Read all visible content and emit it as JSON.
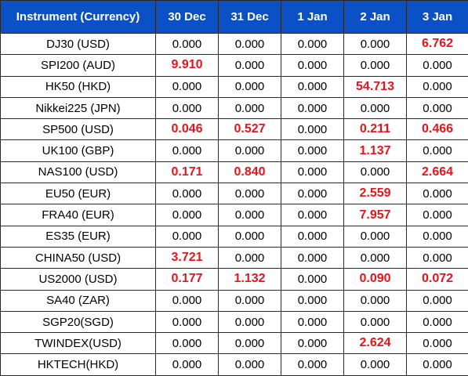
{
  "header": {
    "instrument": "Instrument (Currency)",
    "dates": [
      "30 Dec",
      "31 Dec",
      "1 Jan",
      "2 Jan",
      "3 Jan"
    ]
  },
  "colors": {
    "header_bg": "#0b51c5",
    "header_text": "#ffffff",
    "highlight": "#e8141b",
    "border": "#2a2a2a"
  },
  "rows": [
    {
      "instrument": "DJ30 (USD)",
      "values": [
        "0.000",
        "0.000",
        "0.000",
        "0.000",
        "6.762"
      ],
      "highlight": [
        false,
        false,
        false,
        false,
        true
      ]
    },
    {
      "instrument": "SPI200 (AUD)",
      "values": [
        "9.910",
        "0.000",
        "0.000",
        "0.000",
        "0.000"
      ],
      "highlight": [
        true,
        false,
        false,
        false,
        false
      ]
    },
    {
      "instrument": "HK50 (HKD)",
      "values": [
        "0.000",
        "0.000",
        "0.000",
        "54.713",
        "0.000"
      ],
      "highlight": [
        false,
        false,
        false,
        true,
        false
      ]
    },
    {
      "instrument": "Nikkei225 (JPN)",
      "values": [
        "0.000",
        "0.000",
        "0.000",
        "0.000",
        "0.000"
      ],
      "highlight": [
        false,
        false,
        false,
        false,
        false
      ]
    },
    {
      "instrument": "SP500 (USD)",
      "values": [
        "0.046",
        "0.527",
        "0.000",
        "0.211",
        "0.466"
      ],
      "highlight": [
        true,
        true,
        false,
        true,
        true
      ]
    },
    {
      "instrument": "UK100 (GBP)",
      "values": [
        "0.000",
        "0.000",
        "0.000",
        "1.137",
        "0.000"
      ],
      "highlight": [
        false,
        false,
        false,
        true,
        false
      ]
    },
    {
      "instrument": "NAS100 (USD)",
      "values": [
        "0.171",
        "0.840",
        "0.000",
        "0.000",
        "2.664"
      ],
      "highlight": [
        true,
        true,
        false,
        false,
        true
      ]
    },
    {
      "instrument": "EU50 (EUR)",
      "values": [
        "0.000",
        "0.000",
        "0.000",
        "2.559",
        "0.000"
      ],
      "highlight": [
        false,
        false,
        false,
        true,
        false
      ]
    },
    {
      "instrument": "FRA40 (EUR)",
      "values": [
        "0.000",
        "0.000",
        "0.000",
        "7.957",
        "0.000"
      ],
      "highlight": [
        false,
        false,
        false,
        true,
        false
      ]
    },
    {
      "instrument": "ES35 (EUR)",
      "values": [
        "0.000",
        "0.000",
        "0.000",
        "0.000",
        "0.000"
      ],
      "highlight": [
        false,
        false,
        false,
        false,
        false
      ]
    },
    {
      "instrument": "CHINA50 (USD)",
      "values": [
        "3.721",
        "0.000",
        "0.000",
        "0.000",
        "0.000"
      ],
      "highlight": [
        true,
        false,
        false,
        false,
        false
      ]
    },
    {
      "instrument": "US2000 (USD)",
      "values": [
        "0.177",
        "1.132",
        "0.000",
        "0.090",
        "0.072"
      ],
      "highlight": [
        true,
        true,
        false,
        true,
        true
      ]
    },
    {
      "instrument": "SA40 (ZAR)",
      "values": [
        "0.000",
        "0.000",
        "0.000",
        "0.000",
        "0.000"
      ],
      "highlight": [
        false,
        false,
        false,
        false,
        false
      ]
    },
    {
      "instrument": "SGP20(SGD)",
      "values": [
        "0.000",
        "0.000",
        "0.000",
        "0.000",
        "0.000"
      ],
      "highlight": [
        false,
        false,
        false,
        false,
        false
      ]
    },
    {
      "instrument": "TWINDEX(USD)",
      "values": [
        "0.000",
        "0.000",
        "0.000",
        "2.624",
        "0.000"
      ],
      "highlight": [
        false,
        false,
        false,
        true,
        false
      ]
    },
    {
      "instrument": "HKTECH(HKD)",
      "values": [
        "0.000",
        "0.000",
        "0.000",
        "0.000",
        "0.000"
      ],
      "highlight": [
        false,
        false,
        false,
        false,
        false
      ]
    }
  ]
}
